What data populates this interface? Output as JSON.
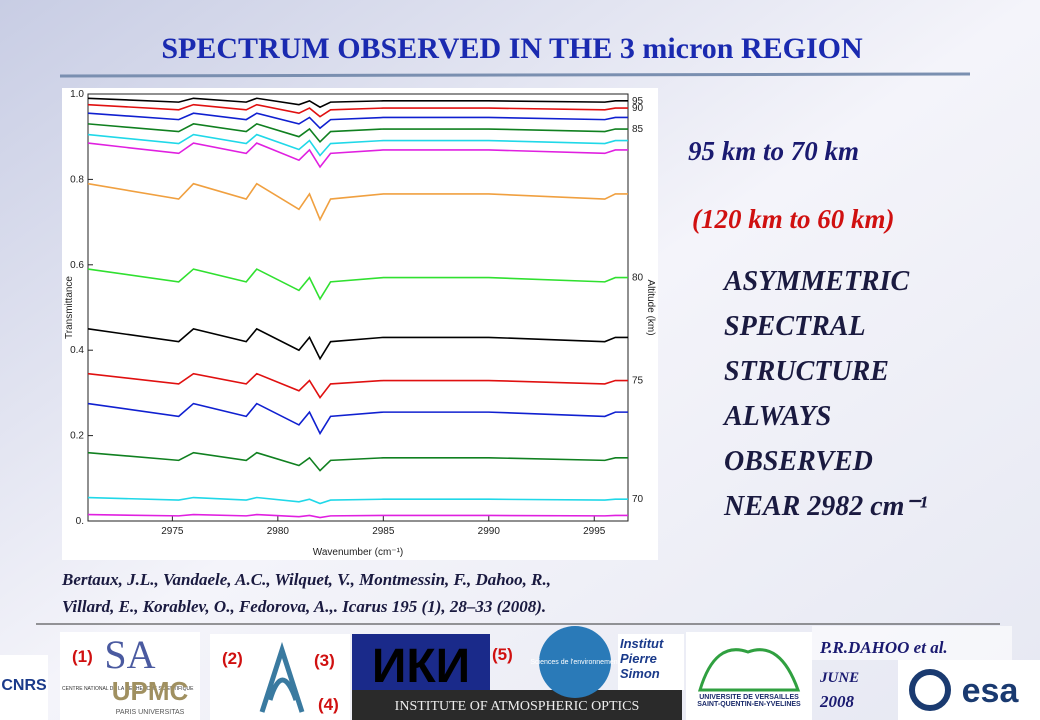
{
  "title": "SPECTRUM OBSERVED IN THE 3 micron REGION",
  "chart_data": {
    "type": "line",
    "x_label": "Wavenumber (cm⁻¹)",
    "y_label": "Transmittance",
    "y2_label": "Altitude (km)",
    "x": [
      2971,
      2975.3,
      2976,
      2978.5,
      2979,
      2981,
      2981.5,
      2982,
      2982.5,
      2985,
      2990,
      2995.5,
      2996,
      2996.6
    ],
    "xlim": [
      2971,
      2996.6
    ],
    "xticks": [
      2975,
      2980,
      2985,
      2990,
      2995
    ],
    "ylim": [
      0,
      1
    ],
    "yticks": [
      {
        "value": 0,
        "label": "0."
      },
      0.2,
      0.4,
      0.6,
      0.8,
      {
        "value": 1,
        "label": "1.0"
      }
    ],
    "series": [
      {
        "name": "95",
        "color": "#000000",
        "values": [
          0.99,
          0.981,
          0.99,
          0.981,
          0.99,
          0.975,
          0.984,
          0.969,
          0.981,
          0.984,
          0.984,
          0.981,
          0.984,
          0.984
        ]
      },
      {
        "name": "90",
        "color": "#e01010",
        "values": [
          0.975,
          0.963,
          0.975,
          0.963,
          0.975,
          0.955,
          0.967,
          0.947,
          0.963,
          0.967,
          0.967,
          0.963,
          0.967,
          0.967
        ]
      },
      {
        "color": "#1020d0",
        "values": [
          0.955,
          0.94,
          0.955,
          0.94,
          0.955,
          0.93,
          0.945,
          0.92,
          0.94,
          0.945,
          0.945,
          0.94,
          0.945,
          0.945
        ]
      },
      {
        "name": "85",
        "color": "#108020",
        "values": [
          0.93,
          0.912,
          0.93,
          0.912,
          0.93,
          0.9,
          0.918,
          0.888,
          0.912,
          0.918,
          0.918,
          0.912,
          0.918,
          0.918
        ]
      },
      {
        "color": "#20d8e8",
        "values": [
          0.905,
          0.884,
          0.905,
          0.884,
          0.905,
          0.87,
          0.891,
          0.856,
          0.884,
          0.891,
          0.891,
          0.884,
          0.891,
          0.891
        ]
      },
      {
        "color": "#e020e0",
        "values": [
          0.885,
          0.861,
          0.885,
          0.861,
          0.885,
          0.845,
          0.869,
          0.829,
          0.861,
          0.869,
          0.869,
          0.861,
          0.869,
          0.869
        ]
      },
      {
        "color": "#f0a040",
        "values": [
          0.79,
          0.754,
          0.79,
          0.754,
          0.79,
          0.73,
          0.766,
          0.706,
          0.754,
          0.766,
          0.766,
          0.754,
          0.766,
          0.766
        ]
      },
      {
        "name": "80",
        "color": "#30e030",
        "values": [
          0.59,
          0.56,
          0.59,
          0.56,
          0.59,
          0.54,
          0.57,
          0.52,
          0.56,
          0.57,
          0.57,
          0.56,
          0.57,
          0.57
        ]
      },
      {
        "color": "#000000",
        "values": [
          0.45,
          0.42,
          0.45,
          0.42,
          0.45,
          0.4,
          0.43,
          0.38,
          0.42,
          0.43,
          0.43,
          0.42,
          0.43,
          0.43
        ]
      },
      {
        "name": "75",
        "color": "#e01010",
        "values": [
          0.345,
          0.321,
          0.345,
          0.321,
          0.345,
          0.305,
          0.329,
          0.289,
          0.321,
          0.329,
          0.329,
          0.321,
          0.329,
          0.329
        ]
      },
      {
        "color": "#1020d0",
        "values": [
          0.275,
          0.245,
          0.275,
          0.245,
          0.275,
          0.225,
          0.255,
          0.205,
          0.245,
          0.255,
          0.255,
          0.245,
          0.255,
          0.255
        ]
      },
      {
        "color": "#108020",
        "values": [
          0.16,
          0.142,
          0.16,
          0.142,
          0.16,
          0.13,
          0.148,
          0.118,
          0.142,
          0.148,
          0.148,
          0.142,
          0.148,
          0.148
        ]
      },
      {
        "name": "70",
        "color": "#20d8e8",
        "values": [
          0.055,
          0.049,
          0.055,
          0.049,
          0.055,
          0.045,
          0.051,
          0.041,
          0.049,
          0.051,
          0.051,
          0.049,
          0.051,
          0.051
        ]
      },
      {
        "color": "#e020e0",
        "values": [
          0.015,
          0.012,
          0.015,
          0.012,
          0.015,
          0.01,
          0.013,
          0.008,
          0.012,
          0.013,
          0.013,
          0.012,
          0.013,
          0.013
        ]
      }
    ]
  },
  "side_text": {
    "range": "95 km to 70 km",
    "range_alt": "(120 km to 60 km)",
    "lines": [
      "ASYMMETRIC",
      "SPECTRAL",
      "STRUCTURE",
      "ALWAYS",
      "OBSERVED",
      "NEAR 2982 cm⁻¹"
    ]
  },
  "reference": [
    "Bertaux, J.L., Vandaele, A.C., Wilquet, V., Montmessin, F., Dahoo, R.,",
    "Villard, E., Korablev, O., Fedorova, A.,. Icarus 195 (1), 28–33 (2008)."
  ],
  "logos": {
    "cnrs": "CNRS",
    "cnrs_sub": "CENTRE NATIONAL DE LA RECHERCHE SCIENTIFIQUE",
    "upmc": "UPMC",
    "upmc_sub": "PARIS UNIVERSITAS",
    "iao": "INSTITUTE OF ATMOSPHERIC OPTICS",
    "iki": "ИКИ",
    "sciences": "Sciences de l'environnement",
    "ipsl": "Institut Pierre Simon",
    "uvsq": "UNIVERSITE DE VERSAILLES SAINT-QUENTIN-EN-YVELINES",
    "esa": "esa"
  },
  "markers": [
    "(1)",
    "(2)",
    "(3)",
    "(4)",
    "(5)"
  ],
  "author": "P.R.DAHOO et al.",
  "date": [
    "JUNE",
    "2008"
  ]
}
